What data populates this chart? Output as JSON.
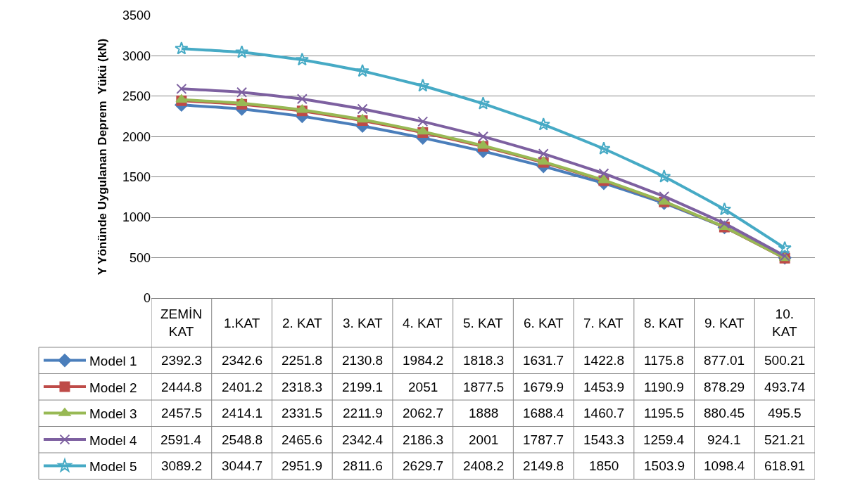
{
  "chart_data": {
    "type": "line",
    "ylabel": "Y Yönünde Uygulanan Deprem  Yükü (kN)",
    "categories": [
      "ZEMİN KAT",
      "1.KAT",
      "2. KAT",
      "3. KAT",
      "4. KAT",
      "5. KAT",
      "6. KAT",
      "7. KAT",
      "8. KAT",
      "9. KAT",
      "10. KAT"
    ],
    "series": [
      {
        "name": "Model 1",
        "color": "#4a7ebb",
        "marker": "diamond",
        "values": [
          2392.3,
          2342.6,
          2251.8,
          2130.8,
          1984.2,
          1818.3,
          1631.7,
          1422.8,
          1175.8,
          877.01,
          500.21
        ]
      },
      {
        "name": "Model 2",
        "color": "#be4b48",
        "marker": "square",
        "values": [
          2444.8,
          2401.2,
          2318.3,
          2199.1,
          2051,
          1877.5,
          1679.9,
          1453.9,
          1190.9,
          878.29,
          493.74
        ]
      },
      {
        "name": "Model 3",
        "color": "#98b954",
        "marker": "triangle",
        "values": [
          2457.5,
          2414.1,
          2331.5,
          2211.9,
          2062.7,
          1888,
          1688.4,
          1460.7,
          1195.5,
          880.45,
          495.5
        ]
      },
      {
        "name": "Model 4",
        "color": "#7d60a0",
        "marker": "cross",
        "values": [
          2591.4,
          2548.8,
          2465.6,
          2342.4,
          2186.3,
          2001,
          1787.7,
          1543.3,
          1259.4,
          924.1,
          521.21
        ]
      },
      {
        "name": "Model 5",
        "color": "#46aac5",
        "marker": "star",
        "values": [
          3089.2,
          3044.7,
          2951.9,
          2811.6,
          2629.7,
          2408.2,
          2149.8,
          1850,
          1503.9,
          1098.4,
          618.91
        ]
      }
    ],
    "ylim": [
      0,
      3500
    ],
    "yticks": [
      0,
      500,
      1000,
      1500,
      2000,
      2500,
      3000,
      3500
    ],
    "grid": "y",
    "legend": "bottom left",
    "data_labels": true
  }
}
